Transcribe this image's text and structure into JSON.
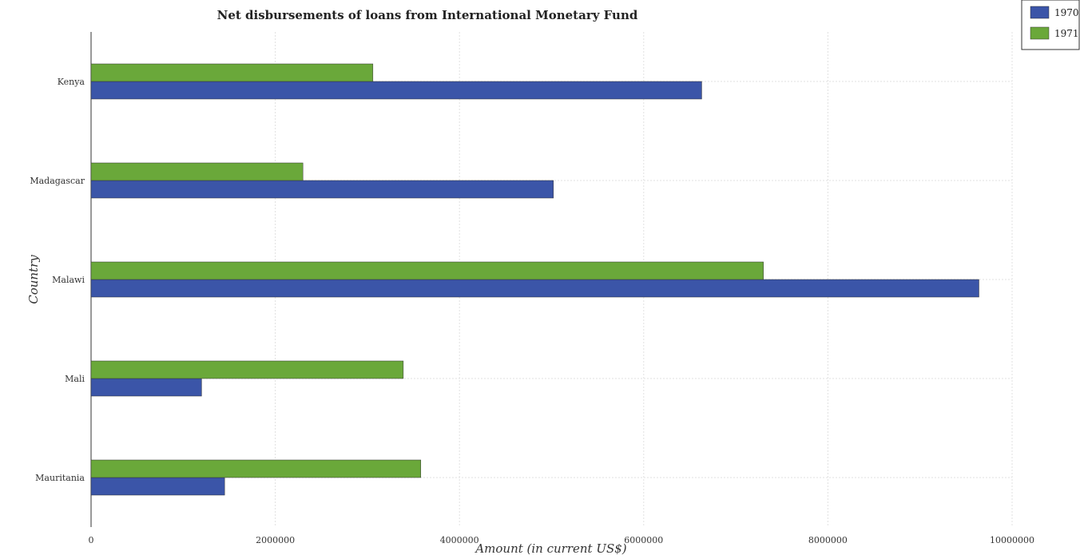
{
  "chart_data": {
    "type": "bar",
    "orientation": "horizontal",
    "title": "Net disbursements of loans from International Monetary Fund",
    "xlabel": "Amount (in current US$)",
    "ylabel": "Country",
    "categories": [
      "Kenya",
      "Madagascar",
      "Malawi",
      "Mali",
      "Mauritania"
    ],
    "series": [
      {
        "name": "1970",
        "color": "#3b55a8",
        "values": [
          6630000,
          5020000,
          9640000,
          1200000,
          1450000
        ]
      },
      {
        "name": "1971",
        "color": "#6aa83a",
        "values": [
          3060000,
          2300000,
          7300000,
          3390000,
          3580000
        ]
      }
    ],
    "xlim": [
      0,
      10000000
    ],
    "xticks": [
      0,
      2000000,
      4000000,
      6000000,
      8000000,
      10000000
    ],
    "xtick_labels": [
      "0",
      "2000000",
      "4000000",
      "6000000",
      "8000000",
      "10000000"
    ],
    "grid": true,
    "legend_position": "top-right"
  }
}
